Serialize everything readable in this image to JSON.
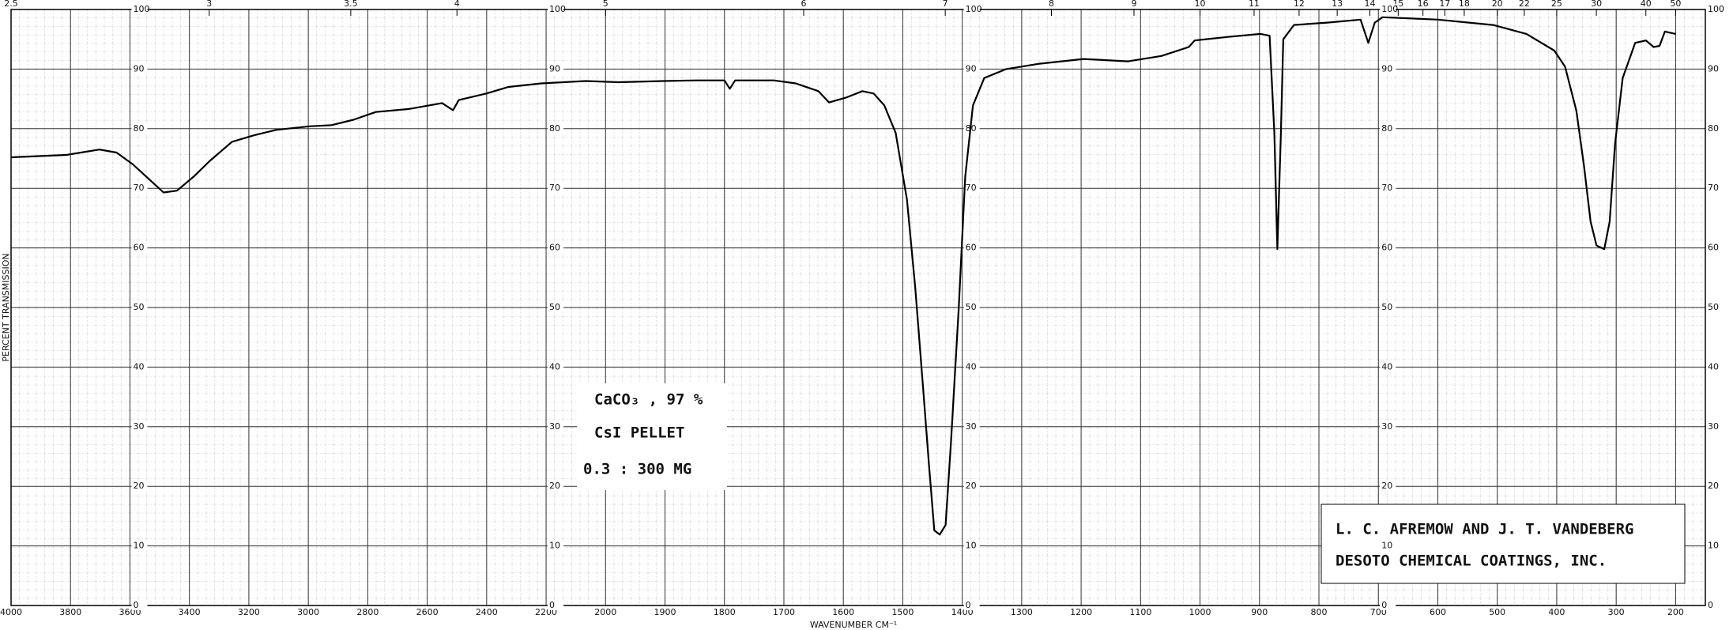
{
  "chart_data": {
    "type": "line",
    "y_label": "PERCENT TRANSMISSION",
    "x_label": "WAVENUMBER CM⁻¹",
    "annotations": [
      "CaCO₃ , 97 %",
      "CsI PELLET",
      "0.3 : 300 MG",
      "L. C. AFREMOW AND J. T. VANDEBERG",
      "DESOTO CHEMICAL COATINGS, INC."
    ],
    "xlim": [
      4000,
      150
    ],
    "xticks": [
      4000,
      3800,
      3600,
      3400,
      3200,
      3000,
      2800,
      2600,
      2400,
      2200,
      2000,
      1900,
      1800,
      1700,
      1600,
      1500,
      1400,
      1300,
      1200,
      1100,
      1000,
      900,
      800,
      700,
      600,
      500,
      400,
      300,
      200
    ],
    "x2ticks": [
      2.5,
      3,
      3.5,
      4,
      5,
      6,
      7,
      8,
      9,
      10,
      11,
      12,
      13,
      14,
      15,
      16,
      17,
      18,
      20,
      22,
      25,
      30,
      40,
      50
    ],
    "ylim": [
      0,
      100
    ],
    "yticks": [
      0,
      10,
      20,
      30,
      40,
      50,
      60,
      70,
      80,
      90,
      100
    ],
    "grid": true,
    "series": [
      {
        "name": "CaCO3",
        "color": "#000000",
        "x": [
          4000,
          3814,
          3703,
          3645,
          3590,
          3535,
          3487,
          3442,
          3387,
          3331,
          3257,
          3182,
          3108,
          2996,
          2922,
          2848,
          2773,
          2662,
          2550,
          2513,
          2494,
          2401,
          2327,
          2216,
          2067,
          1978,
          1903,
          1847,
          1800,
          1791,
          1782,
          1717,
          1680,
          1642,
          1624,
          1596,
          1568,
          1549,
          1531,
          1512,
          1493,
          1479,
          1466,
          1456,
          1447,
          1438,
          1428,
          1419,
          1406,
          1395,
          1382,
          1363,
          1326,
          1270,
          1196,
          1121,
          1065,
          1019,
          1009,
          953,
          898,
          883,
          875,
          870,
          864,
          860,
          842,
          786,
          730,
          717,
          706,
          693,
          600,
          507,
          451,
          404,
          386,
          367,
          354,
          343,
          333,
          320,
          311,
          302,
          289,
          268,
          250,
          237,
          227,
          218,
          200
        ],
        "values": [
          75.2,
          75.6,
          76.5,
          76,
          74,
          71.5,
          69.3,
          69.6,
          71.9,
          74.6,
          77.8,
          78.9,
          79.8,
          80.4,
          80.6,
          81.5,
          82.8,
          83.3,
          84.3,
          83.1,
          84.8,
          85.9,
          87,
          87.6,
          88,
          87.8,
          88,
          88.1,
          88.1,
          86.7,
          88.1,
          88.1,
          87.6,
          86.3,
          84.4,
          85.2,
          86.3,
          85.9,
          83.9,
          79.3,
          68.1,
          53.3,
          36.7,
          23.7,
          12.6,
          11.9,
          13.5,
          27.4,
          49.6,
          71.9,
          83.9,
          88.5,
          90,
          90.9,
          91.7,
          91.3,
          92.2,
          93.7,
          94.8,
          95.4,
          95.9,
          95.6,
          79.3,
          59.8,
          79.3,
          95,
          97.4,
          97.8,
          98.3,
          94.4,
          97.8,
          98.7,
          98.3,
          97.4,
          95.9,
          93.1,
          90.4,
          83,
          73.7,
          64.4,
          60.4,
          59.8,
          64.4,
          77.4,
          88.5,
          94.4,
          94.8,
          93.7,
          93.9,
          96.3,
          95.9
        ]
      }
    ]
  }
}
